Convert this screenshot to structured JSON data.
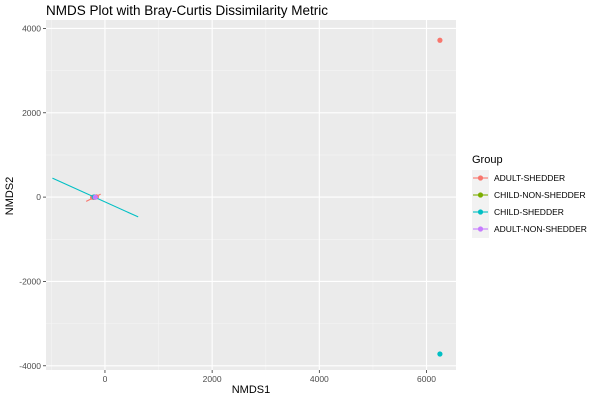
{
  "chart_data": {
    "type": "scatter",
    "title": "NMDS Plot with Bray-Curtis Dissimilarity Metric",
    "xlabel": "NMDS1",
    "ylabel": "NMDS2",
    "xlim": [
      -1100,
      6550
    ],
    "ylim": [
      -4100,
      4200
    ],
    "x_ticks": [
      0,
      2000,
      4000,
      6000
    ],
    "y_ticks": [
      -4000,
      -2000,
      0,
      2000,
      4000
    ],
    "grid": true,
    "legend_position": "right",
    "legend_title": "Group",
    "series": [
      {
        "name": "ADULT-SHEDDER",
        "color": "#F8766D",
        "points": [
          [
            6250,
            3720
          ],
          [
            -210,
            0
          ],
          [
            -160,
            5
          ],
          [
            -230,
            -5
          ]
        ],
        "segments": [
          [
            [
              -350,
              -100
            ],
            [
              -80,
              70
            ]
          ]
        ]
      },
      {
        "name": "CHILD-NON-SHEDDER",
        "color": "#7CAE00",
        "points": [
          [
            -190,
            0
          ]
        ],
        "segments": []
      },
      {
        "name": "CHILD-SHEDDER",
        "color": "#00BFC4",
        "points": [
          [
            6250,
            -3720
          ],
          [
            -200,
            2
          ]
        ],
        "segments": [
          [
            [
              -980,
              450
            ],
            [
              620,
              -470
            ]
          ]
        ]
      },
      {
        "name": "ADULT-NON-SHEDDER",
        "color": "#C77CFF",
        "points": [
          [
            -180,
            -2
          ]
        ],
        "segments": []
      }
    ]
  }
}
